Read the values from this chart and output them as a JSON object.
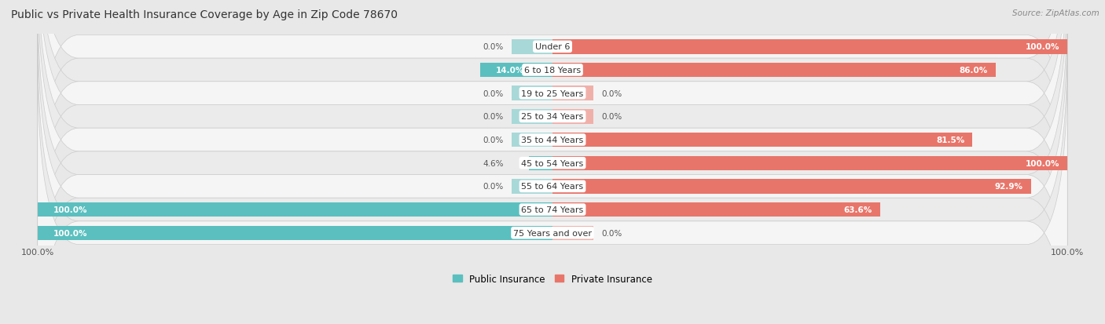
{
  "title": "Public vs Private Health Insurance Coverage by Age in Zip Code 78670",
  "source": "Source: ZipAtlas.com",
  "categories": [
    "Under 6",
    "6 to 18 Years",
    "19 to 25 Years",
    "25 to 34 Years",
    "35 to 44 Years",
    "45 to 54 Years",
    "55 to 64 Years",
    "65 to 74 Years",
    "75 Years and over"
  ],
  "public_values": [
    0.0,
    14.0,
    0.0,
    0.0,
    0.0,
    4.6,
    0.0,
    100.0,
    100.0
  ],
  "private_values": [
    100.0,
    86.0,
    0.0,
    0.0,
    81.5,
    100.0,
    92.9,
    63.6,
    0.0
  ],
  "public_color": "#5bbfbf",
  "public_stub_color": "#a8d8d8",
  "private_color": "#e8756a",
  "private_stub_color": "#f0b0aa",
  "public_label": "Public Insurance",
  "private_label": "Private Insurance",
  "background_color": "#e8e8e8",
  "row_colors": [
    "#f5f5f5",
    "#ebebeb"
  ],
  "title_fontsize": 10,
  "label_fontsize": 8,
  "bar_value_fontsize": 7.5,
  "max_val": 100,
  "stub_size": 8
}
